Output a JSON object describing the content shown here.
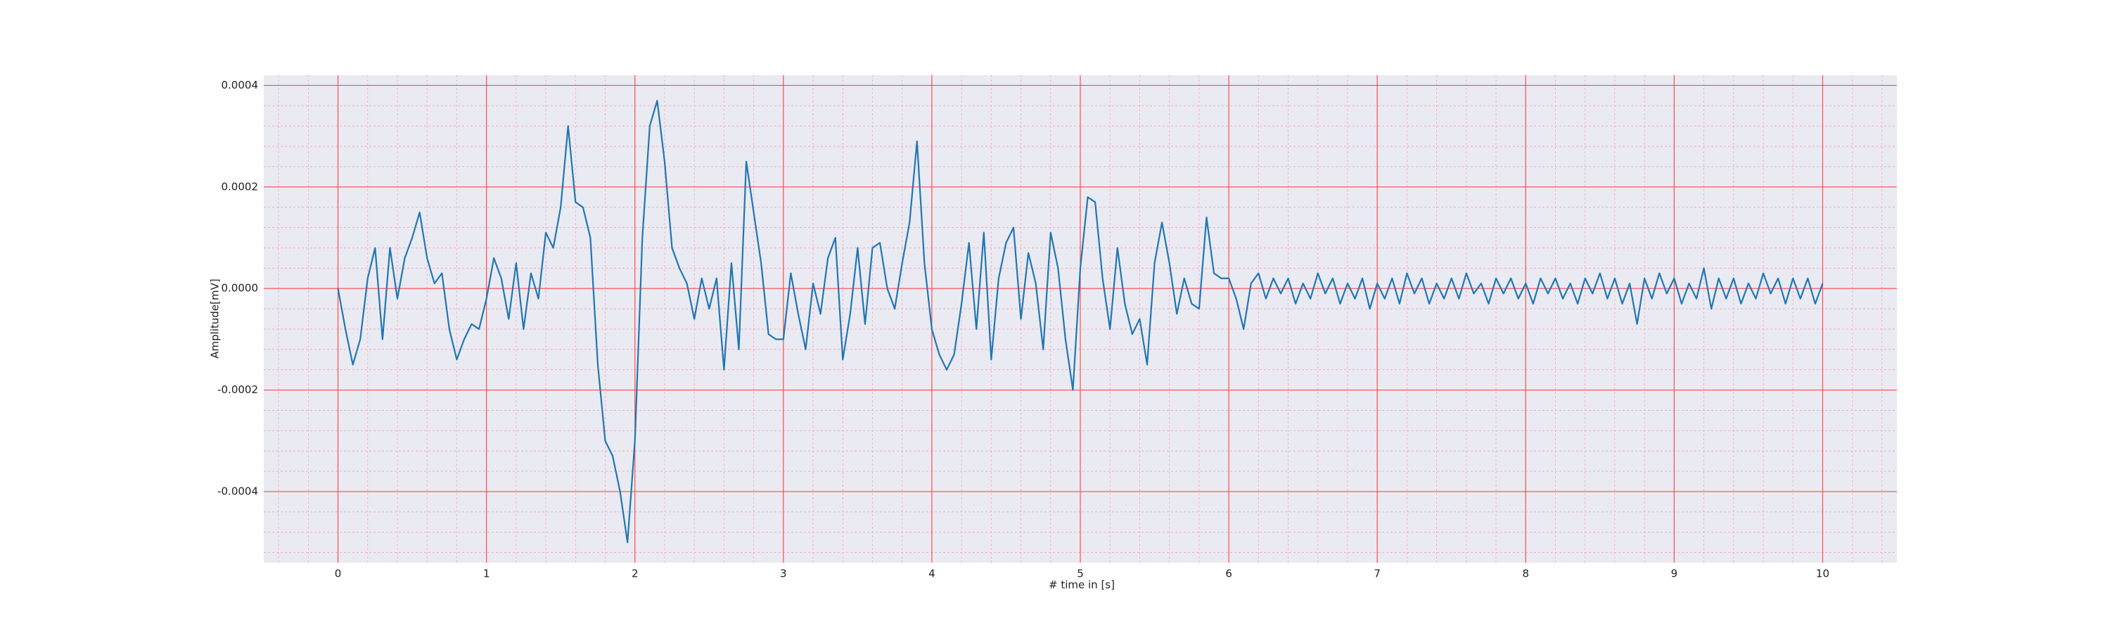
{
  "chart_data": {
    "type": "line",
    "xlabel": "# time in [s]",
    "ylabel": "Amplitude[mV]",
    "color": "#1f77b4",
    "grid": true,
    "minor_grid": true,
    "xlim": [
      -0.5,
      10.5
    ],
    "xticks": [
      0,
      1,
      2,
      3,
      4,
      5,
      6,
      7,
      8,
      9,
      10
    ],
    "ylim": [
      -0.00054,
      0.00042
    ],
    "yticks": [
      {
        "value": -0.0004,
        "label": "-0.0004"
      },
      {
        "value": -0.0002,
        "label": "-0.0002"
      },
      {
        "value": 0,
        "label": "0.0000"
      },
      {
        "value": 0.0002,
        "label": "0.0002"
      },
      {
        "value": 0.0004,
        "label": "0.0004"
      }
    ],
    "x": [
      0,
      0.05,
      0.1,
      0.15,
      0.2,
      0.25,
      0.3,
      0.35,
      0.4,
      0.45,
      0.5,
      0.55,
      0.6,
      0.65,
      0.7,
      0.75,
      0.8,
      0.85,
      0.9,
      0.95,
      1,
      1.05,
      1.1,
      1.15,
      1.2,
      1.25,
      1.3,
      1.35,
      1.4,
      1.45,
      1.5,
      1.55,
      1.6,
      1.65,
      1.7,
      1.75,
      1.8,
      1.85,
      1.9,
      1.95,
      2,
      2.05,
      2.1,
      2.15,
      2.2,
      2.25,
      2.3,
      2.35,
      2.4,
      2.45,
      2.5,
      2.55,
      2.6,
      2.65,
      2.7,
      2.75,
      2.8,
      2.85,
      2.9,
      2.95,
      3,
      3.05,
      3.1,
      3.15,
      3.2,
      3.25,
      3.3,
      3.35,
      3.4,
      3.45,
      3.5,
      3.55,
      3.6,
      3.65,
      3.7,
      3.75,
      3.8,
      3.85,
      3.9,
      3.95,
      4,
      4.05,
      4.1,
      4.15,
      4.2,
      4.25,
      4.3,
      4.35,
      4.4,
      4.45,
      4.5,
      4.55,
      4.6,
      4.65,
      4.7,
      4.75,
      4.8,
      4.85,
      4.9,
      4.95,
      5,
      5.05,
      5.1,
      5.15,
      5.2,
      5.25,
      5.3,
      5.35,
      5.4,
      5.45,
      5.5,
      5.55,
      5.6,
      5.65,
      5.7,
      5.75,
      5.8,
      5.85,
      5.9,
      5.95,
      6,
      6.05,
      6.1,
      6.15,
      6.2,
      6.25,
      6.3,
      6.35,
      6.4,
      6.45,
      6.5,
      6.55,
      6.6,
      6.65,
      6.7,
      6.75,
      6.8,
      6.85,
      6.9,
      6.95,
      7,
      7.05,
      7.1,
      7.15,
      7.2,
      7.25,
      7.3,
      7.35,
      7.4,
      7.45,
      7.5,
      7.55,
      7.6,
      7.65,
      7.7,
      7.75,
      7.8,
      7.85,
      7.9,
      7.95,
      8,
      8.05,
      8.1,
      8.15,
      8.2,
      8.25,
      8.3,
      8.35,
      8.4,
      8.45,
      8.5,
      8.55,
      8.6,
      8.65,
      8.7,
      8.75,
      8.8,
      8.85,
      8.9,
      8.95,
      9,
      9.05,
      9.1,
      9.15,
      9.2,
      9.25,
      9.3,
      9.35,
      9.4,
      9.45,
      9.5,
      9.55,
      9.6,
      9.65,
      9.7,
      9.75,
      9.8,
      9.85,
      9.9,
      9.95,
      10
    ],
    "values": [
      0,
      -8e-05,
      -0.00015,
      -0.0001,
      2e-05,
      8e-05,
      -0.0001,
      8e-05,
      -2e-05,
      6e-05,
      0.0001,
      0.00015,
      6e-05,
      1e-05,
      3e-05,
      -8e-05,
      -0.00014,
      -0.0001,
      -7e-05,
      -8e-05,
      -2e-05,
      6e-05,
      2e-05,
      -6e-05,
      5e-05,
      -8e-05,
      3e-05,
      -2e-05,
      0.00011,
      8e-05,
      0.00016,
      0.00032,
      0.00017,
      0.00016,
      0.0001,
      -0.00015,
      -0.0003,
      -0.00033,
      -0.0004,
      -0.0005,
      -0.0003,
      0.0001,
      0.00032,
      0.00037,
      0.00025,
      8e-05,
      4e-05,
      1e-05,
      -6e-05,
      2e-05,
      -4e-05,
      2e-05,
      -0.00016,
      5e-05,
      -0.00012,
      0.00025,
      0.00015,
      5e-05,
      -9e-05,
      -0.0001,
      -0.0001,
      3e-05,
      -5e-05,
      -0.00012,
      1e-05,
      -5e-05,
      6e-05,
      0.0001,
      -0.00014,
      -5e-05,
      8e-05,
      -7e-05,
      8e-05,
      9e-05,
      0,
      -4e-05,
      5e-05,
      0.00013,
      0.00029,
      5e-05,
      -8e-05,
      -0.00013,
      -0.00016,
      -0.00013,
      -3e-05,
      9e-05,
      -8e-05,
      0.00011,
      -0.00014,
      2e-05,
      9e-05,
      0.00012,
      -6e-05,
      7e-05,
      1e-05,
      -0.00012,
      0.00011,
      4e-05,
      -0.0001,
      -0.0002,
      4e-05,
      0.00018,
      0.00017,
      2e-05,
      -8e-05,
      8e-05,
      -3e-05,
      -9e-05,
      -6e-05,
      -0.00015,
      5e-05,
      0.00013,
      5e-05,
      -5e-05,
      2e-05,
      -3e-05,
      -4e-05,
      0.00014,
      3e-05,
      2e-05,
      2e-05,
      -2e-05,
      -8e-05,
      1e-05,
      3e-05,
      -2e-05,
      2e-05,
      -1e-05,
      2e-05,
      -3e-05,
      1e-05,
      -2e-05,
      3e-05,
      -1e-05,
      2e-05,
      -3e-05,
      1e-05,
      -2e-05,
      2e-05,
      -4e-05,
      1e-05,
      -2e-05,
      2e-05,
      -3e-05,
      3e-05,
      -1e-05,
      2e-05,
      -3e-05,
      1e-05,
      -2e-05,
      2e-05,
      -2e-05,
      3e-05,
      -1e-05,
      1e-05,
      -3e-05,
      2e-05,
      -1e-05,
      2e-05,
      -2e-05,
      1e-05,
      -3e-05,
      2e-05,
      -1e-05,
      2e-05,
      -2e-05,
      1e-05,
      -3e-05,
      2e-05,
      -1e-05,
      3e-05,
      -2e-05,
      2e-05,
      -3e-05,
      1e-05,
      -7e-05,
      2e-05,
      -2e-05,
      3e-05,
      -1e-05,
      2e-05,
      -3e-05,
      1e-05,
      -2e-05,
      4e-05,
      -4e-05,
      2e-05,
      -2e-05,
      2e-05,
      -3e-05,
      1e-05,
      -2e-05,
      3e-05,
      -1e-05,
      2e-05,
      -3e-05,
      2e-05,
      -2e-05,
      2e-05,
      -3e-05,
      1e-05
    ]
  }
}
